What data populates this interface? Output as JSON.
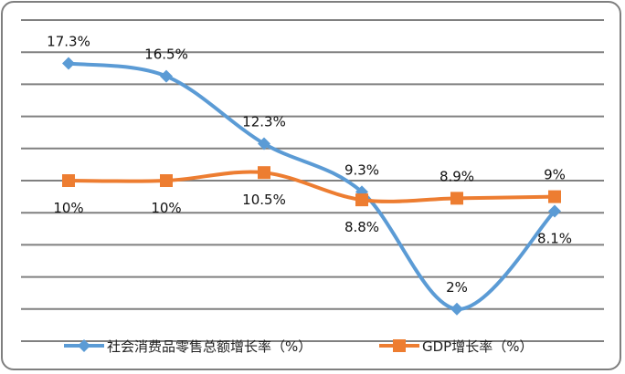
{
  "chart_data": {
    "type": "line",
    "title": "",
    "xlabel": "",
    "ylabel": "",
    "x": [
      1,
      2,
      3,
      4,
      5,
      6
    ],
    "ylim": [
      0,
      20
    ],
    "y_grid_step": 2,
    "grid": true,
    "smooth": true,
    "legend_position": "bottom",
    "series": [
      {
        "name": "社会消费品零售总额增长率（%）",
        "values": [
          17.3,
          16.5,
          12.3,
          9.3,
          2,
          8.1
        ],
        "labels": [
          "17.3%",
          "16.5%",
          "12.3%",
          "9.3%",
          "2%",
          "8.1%"
        ],
        "label_side": [
          "above",
          "above",
          "above",
          "above",
          "above",
          "below"
        ],
        "color": "#5b9bd5",
        "marker": "diamond"
      },
      {
        "name": "GDP增长率（%）",
        "values": [
          10,
          10,
          10.5,
          8.8,
          8.9,
          9
        ],
        "labels": [
          "10%",
          "10%",
          "10.5%",
          "8.8%",
          "8.9%",
          "9%"
        ],
        "label_side": [
          "below",
          "below",
          "below",
          "below",
          "above",
          "above"
        ],
        "color": "#ed7d31",
        "marker": "square"
      }
    ]
  }
}
